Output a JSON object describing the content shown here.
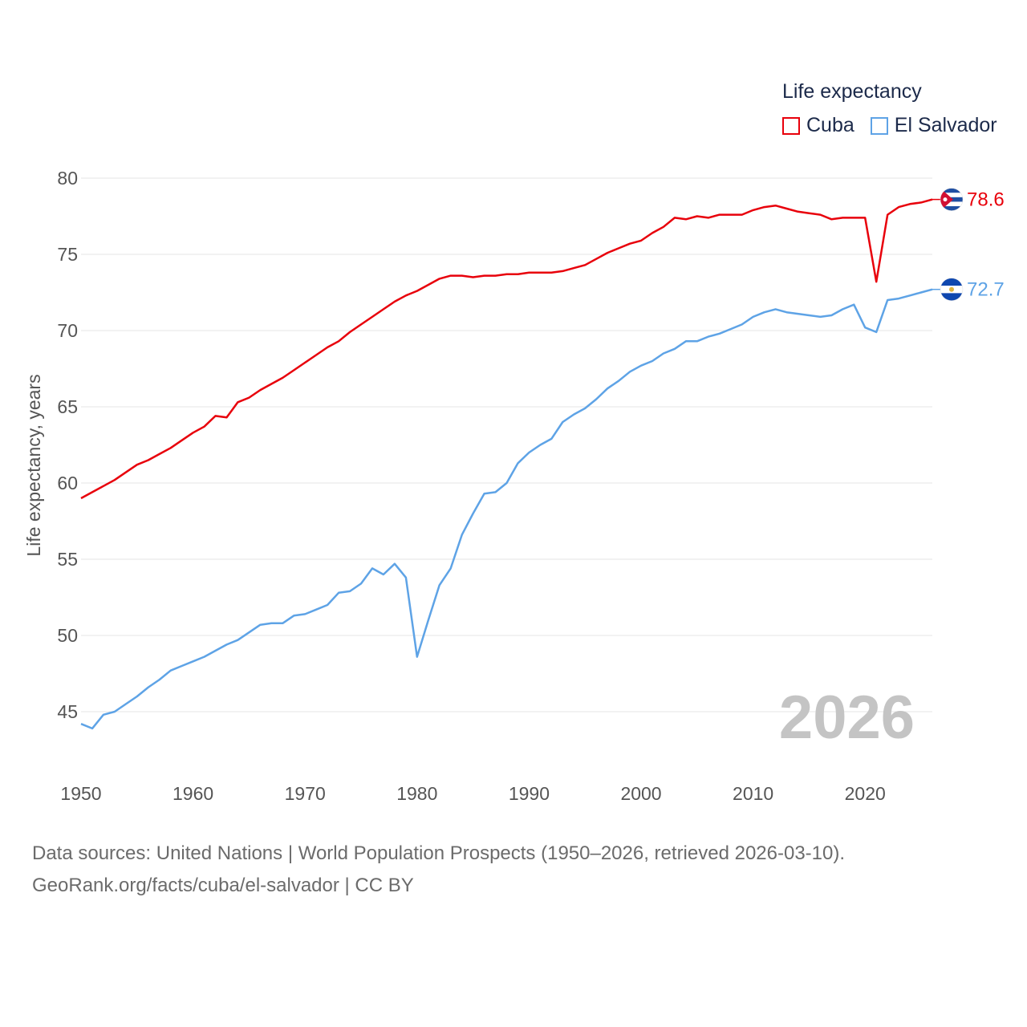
{
  "legend": {
    "title": "Life expectancy",
    "items": [
      {
        "label": "Cuba",
        "color": "#e8000b"
      },
      {
        "label": "El Salvador",
        "color": "#5ea3e6"
      }
    ]
  },
  "footer": {
    "sources": "Data sources: United Nations | World Population Prospects (1950–2026, retrieved 2026-03-10).",
    "credit": "GeoRank.org/facts/cuba/el-salvador | CC BY"
  },
  "chart_data": {
    "type": "line",
    "title": "Life expectancy",
    "year_watermark": "2026",
    "xlabel": "",
    "ylabel": "Life expectancy, years",
    "xlim": [
      1950,
      2026
    ],
    "ylim": [
      42,
      80
    ],
    "yticks": [
      45,
      50,
      55,
      60,
      65,
      70,
      75,
      80
    ],
    "xticks": [
      1950,
      1960,
      1970,
      1980,
      1990,
      2000,
      2010,
      2020
    ],
    "grid": true,
    "legend_position": "top-right",
    "series": [
      {
        "name": "Cuba",
        "color": "#e8000b",
        "end_label": "78.6",
        "flag": "cuba",
        "x": [
          1950,
          1951,
          1952,
          1953,
          1954,
          1955,
          1956,
          1957,
          1958,
          1959,
          1960,
          1961,
          1962,
          1963,
          1964,
          1965,
          1966,
          1967,
          1968,
          1969,
          1970,
          1971,
          1972,
          1973,
          1974,
          1975,
          1976,
          1977,
          1978,
          1979,
          1980,
          1981,
          1982,
          1983,
          1984,
          1985,
          1986,
          1987,
          1988,
          1989,
          1990,
          1991,
          1992,
          1993,
          1994,
          1995,
          1996,
          1997,
          1998,
          1999,
          2000,
          2001,
          2002,
          2003,
          2004,
          2005,
          2006,
          2007,
          2008,
          2009,
          2010,
          2011,
          2012,
          2013,
          2014,
          2015,
          2016,
          2017,
          2018,
          2019,
          2020,
          2021,
          2022,
          2023,
          2024,
          2025,
          2026
        ],
        "y": [
          59.0,
          59.4,
          59.8,
          60.2,
          60.7,
          61.2,
          61.5,
          61.9,
          62.3,
          62.8,
          63.3,
          63.7,
          64.4,
          64.3,
          65.3,
          65.6,
          66.1,
          66.5,
          66.9,
          67.4,
          67.9,
          68.4,
          68.9,
          69.3,
          69.9,
          70.4,
          70.9,
          71.4,
          71.9,
          72.3,
          72.6,
          73.0,
          73.4,
          73.6,
          73.6,
          73.5,
          73.6,
          73.6,
          73.7,
          73.7,
          73.8,
          73.8,
          73.8,
          73.9,
          74.1,
          74.3,
          74.7,
          75.1,
          75.4,
          75.7,
          75.9,
          76.4,
          76.8,
          77.4,
          77.3,
          77.5,
          77.4,
          77.6,
          77.6,
          77.6,
          77.9,
          78.1,
          78.2,
          78.0,
          77.8,
          77.7,
          77.6,
          77.3,
          77.4,
          77.4,
          77.4,
          73.2,
          77.6,
          78.1,
          78.3,
          78.4,
          78.6
        ]
      },
      {
        "name": "El Salvador",
        "color": "#5ea3e6",
        "end_label": "72.7",
        "flag": "el-salvador",
        "x": [
          1950,
          1951,
          1952,
          1953,
          1954,
          1955,
          1956,
          1957,
          1958,
          1959,
          1960,
          1961,
          1962,
          1963,
          1964,
          1965,
          1966,
          1967,
          1968,
          1969,
          1970,
          1971,
          1972,
          1973,
          1974,
          1975,
          1976,
          1977,
          1978,
          1979,
          1980,
          1981,
          1982,
          1983,
          1984,
          1985,
          1986,
          1987,
          1988,
          1989,
          1990,
          1991,
          1992,
          1993,
          1994,
          1995,
          1996,
          1997,
          1998,
          1999,
          2000,
          2001,
          2002,
          2003,
          2004,
          2005,
          2006,
          2007,
          2008,
          2009,
          2010,
          2011,
          2012,
          2013,
          2014,
          2015,
          2016,
          2017,
          2018,
          2019,
          2020,
          2021,
          2022,
          2023,
          2024,
          2025,
          2026
        ],
        "y": [
          44.2,
          43.9,
          44.8,
          45.0,
          45.5,
          46.0,
          46.6,
          47.1,
          47.7,
          48.0,
          48.3,
          48.6,
          49.0,
          49.4,
          49.7,
          50.2,
          50.7,
          50.8,
          50.8,
          51.3,
          51.4,
          51.7,
          52.0,
          52.8,
          52.9,
          53.4,
          54.4,
          54.0,
          54.7,
          53.8,
          48.6,
          51.0,
          53.3,
          54.4,
          56.6,
          58.0,
          59.3,
          59.4,
          60.0,
          61.3,
          62.0,
          62.5,
          62.9,
          64.0,
          64.5,
          64.9,
          65.5,
          66.2,
          66.7,
          67.3,
          67.7,
          68.0,
          68.5,
          68.8,
          69.3,
          69.3,
          69.6,
          69.8,
          70.1,
          70.4,
          70.9,
          71.2,
          71.4,
          71.2,
          71.1,
          71.0,
          70.9,
          71.0,
          71.4,
          71.7,
          70.2,
          69.9,
          72.0,
          72.1,
          72.3,
          72.5,
          72.7
        ]
      }
    ]
  }
}
